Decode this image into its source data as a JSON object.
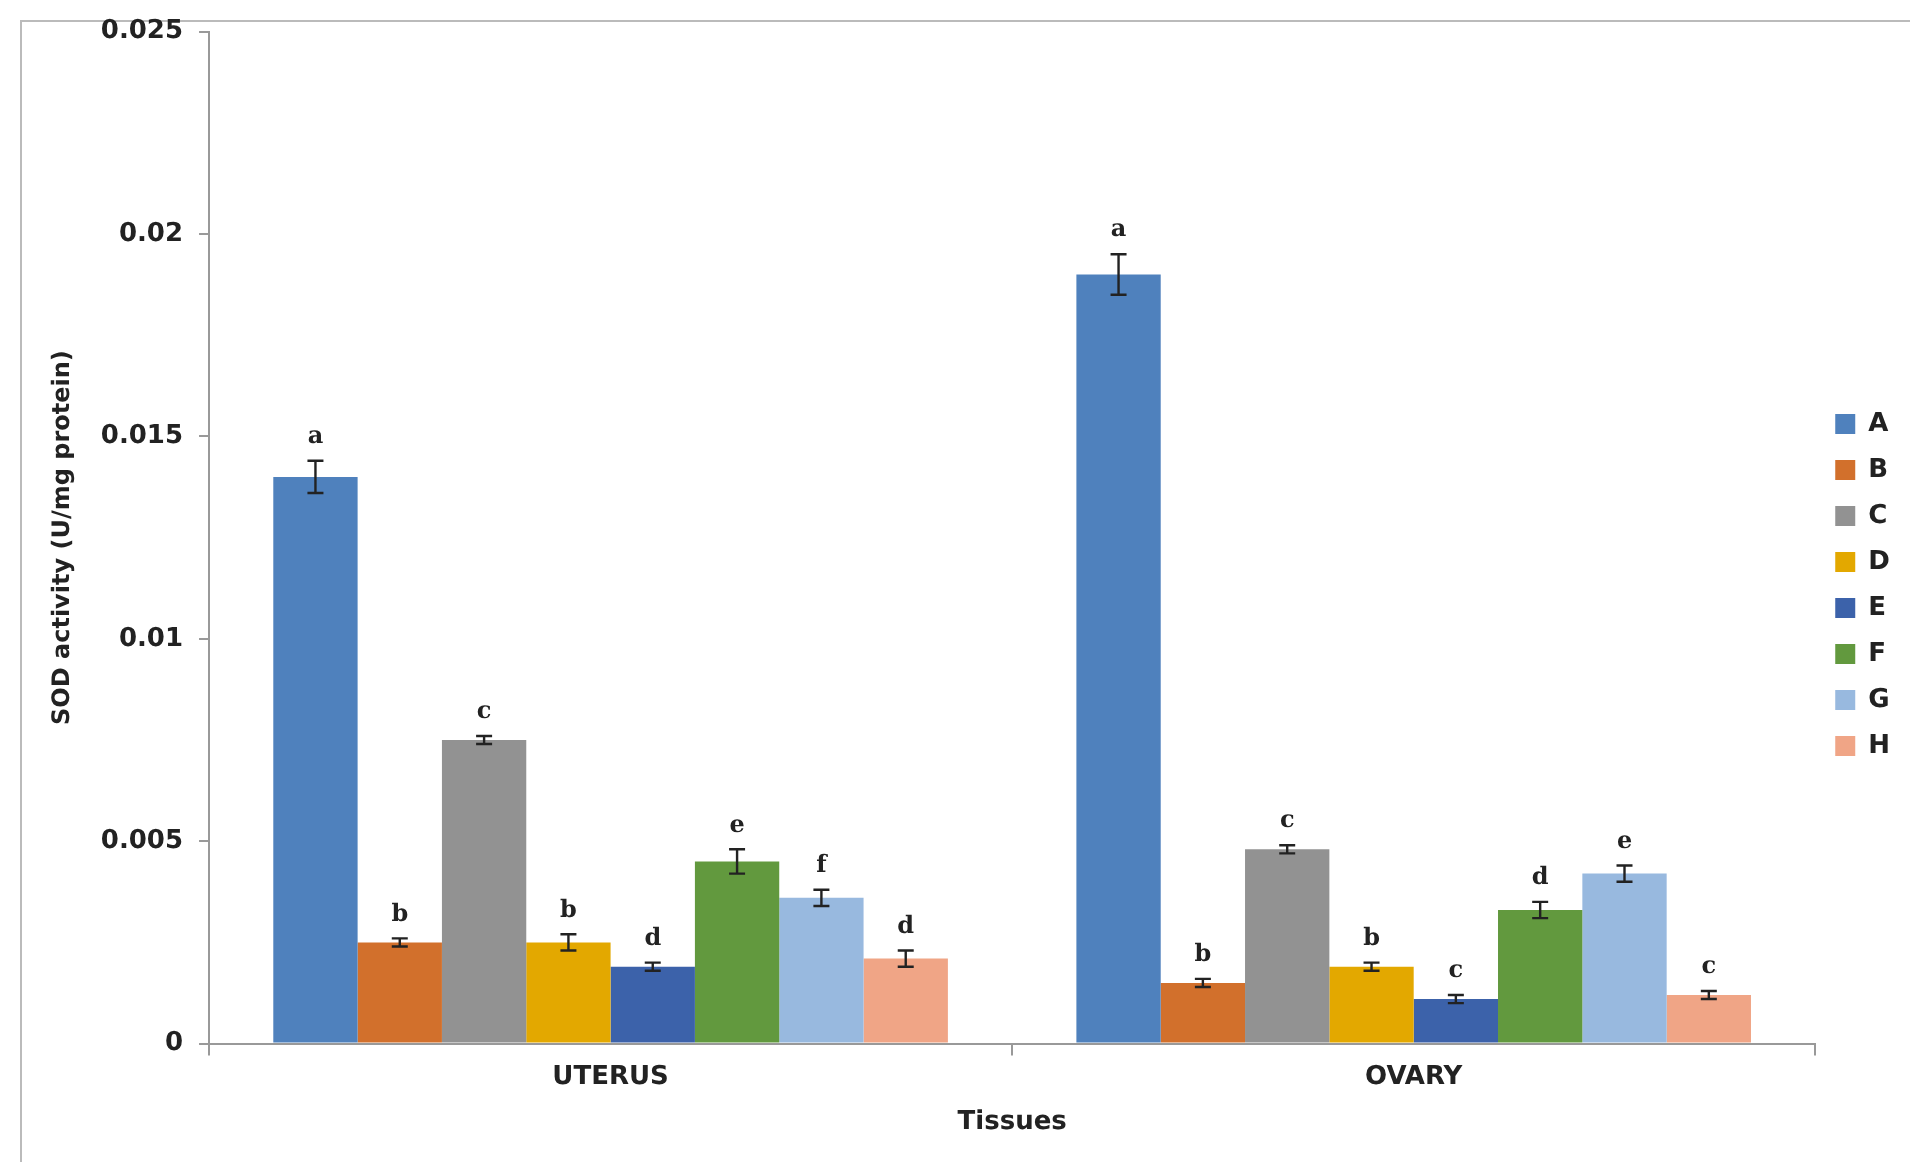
{
  "chart_data": {
    "type": "bar",
    "xlabel": "Tissues",
    "ylabel": "SOD activity (U/mg protein)",
    "categories": [
      "UTERUS",
      "OVARY"
    ],
    "series": [
      {
        "name": "A",
        "color": "#4f81bd",
        "values": [
          0.014,
          0.019
        ],
        "errors": [
          0.0004,
          0.0005
        ],
        "value_labels": [
          "a",
          "a"
        ]
      },
      {
        "name": "B",
        "color": "#d2702c",
        "values": [
          0.0025,
          0.0015
        ],
        "errors": [
          0.0001,
          0.0001
        ],
        "value_labels": [
          "b",
          "b"
        ]
      },
      {
        "name": "C",
        "color": "#929292",
        "values": [
          0.0075,
          0.0048
        ],
        "errors": [
          0.0001,
          0.0001
        ],
        "value_labels": [
          "c",
          "c"
        ]
      },
      {
        "name": "D",
        "color": "#e3a800",
        "values": [
          0.0025,
          0.0019
        ],
        "errors": [
          0.0002,
          0.0001
        ],
        "value_labels": [
          "b",
          "b"
        ]
      },
      {
        "name": "E",
        "color": "#3c62aa",
        "values": [
          0.0019,
          0.0011
        ],
        "errors": [
          0.0001,
          0.0001
        ],
        "value_labels": [
          "d",
          "c"
        ]
      },
      {
        "name": "F",
        "color": "#62993e",
        "values": [
          0.0045,
          0.0033
        ],
        "errors": [
          0.0003,
          0.0002
        ],
        "value_labels": [
          "e",
          "d"
        ]
      },
      {
        "name": "G",
        "color": "#98b9df",
        "values": [
          0.0036,
          0.0042
        ],
        "errors": [
          0.0002,
          0.0002
        ],
        "value_labels": [
          "f",
          "e"
        ]
      },
      {
        "name": "H",
        "color": "#f0a586",
        "values": [
          0.0021,
          0.0012
        ],
        "errors": [
          0.0002,
          0.0001
        ],
        "value_labels": [
          "d",
          "c"
        ]
      }
    ],
    "ylim": [
      0,
      0.025
    ],
    "yticks": [
      0,
      0.005,
      0.01,
      0.015,
      0.02,
      0.025
    ],
    "grid": false,
    "legend": "right"
  }
}
